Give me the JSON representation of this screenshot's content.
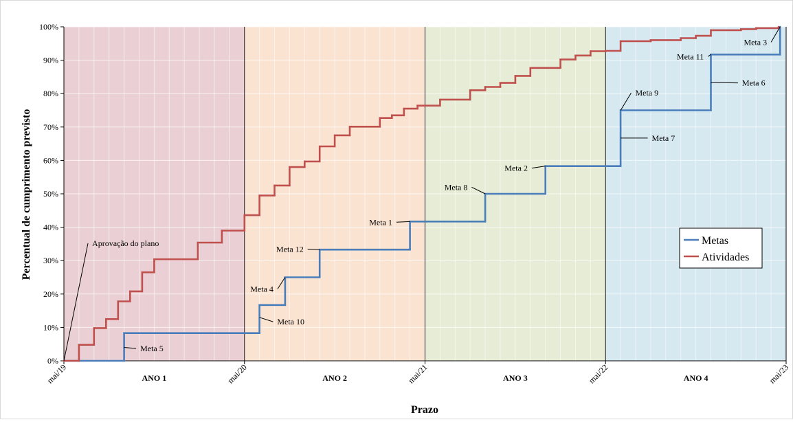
{
  "chart_data": {
    "type": "line",
    "xlabel": "Prazo",
    "ylabel": "Percentual de cumprimento previsto",
    "x_unit": "months since mai/19",
    "xlim": [
      0,
      48
    ],
    "ylim": [
      0,
      100
    ],
    "y_ticks": [
      "0%",
      "10%",
      "20%",
      "30%",
      "40%",
      "50%",
      "60%",
      "70%",
      "80%",
      "90%",
      "100%"
    ],
    "x_ticks": [
      {
        "month": 0,
        "label": "mai/19"
      },
      {
        "month": 12,
        "label": "mai/20"
      },
      {
        "month": 24,
        "label": "mai/21"
      },
      {
        "month": 36,
        "label": "mai/22"
      },
      {
        "month": 48,
        "label": "mai/23"
      }
    ],
    "periods": [
      {
        "label": "ANO 1",
        "start": 0,
        "end": 12,
        "color": "#ead0d4"
      },
      {
        "label": "ANO 2",
        "start": 12,
        "end": 24,
        "color": "#fbe3d2"
      },
      {
        "label": "ANO 3",
        "start": 24,
        "end": 36,
        "color": "#e6ecd5"
      },
      {
        "label": "ANO 4",
        "start": 36,
        "end": 48,
        "color": "#d6e8f0"
      }
    ],
    "grid": true,
    "legend_position": "right",
    "series": [
      {
        "name": "Metas",
        "color": "#4a7ebb",
        "step": true,
        "points": [
          [
            0,
            0
          ],
          [
            4,
            0
          ],
          [
            4,
            8.3
          ],
          [
            13,
            8.3
          ],
          [
            13,
            16.7
          ],
          [
            14.7,
            16.7
          ],
          [
            14.7,
            25
          ],
          [
            17,
            25
          ],
          [
            17,
            33.3
          ],
          [
            23,
            33.3
          ],
          [
            23,
            41.7
          ],
          [
            28,
            41.7
          ],
          [
            28,
            50
          ],
          [
            32,
            50
          ],
          [
            32,
            58.3
          ],
          [
            37,
            58.3
          ],
          [
            37,
            75
          ],
          [
            43,
            75
          ],
          [
            43,
            91.7
          ],
          [
            47.6,
            91.7
          ],
          [
            47.6,
            100
          ]
        ]
      },
      {
        "name": "Atividades",
        "color": "#c0504d",
        "step": true,
        "points": [
          [
            0,
            0
          ],
          [
            1,
            0
          ],
          [
            1,
            4.8
          ],
          [
            2,
            4.8
          ],
          [
            2,
            9.8
          ],
          [
            2.8,
            9.8
          ],
          [
            2.8,
            12.5
          ],
          [
            3.6,
            12.5
          ],
          [
            3.6,
            17.8
          ],
          [
            4.4,
            17.8
          ],
          [
            4.4,
            20.8
          ],
          [
            5.2,
            20.8
          ],
          [
            5.2,
            26.5
          ],
          [
            6,
            26.5
          ],
          [
            6,
            30.4
          ],
          [
            8.9,
            30.4
          ],
          [
            8.9,
            35.4
          ],
          [
            10.5,
            35.4
          ],
          [
            10.5,
            39
          ],
          [
            12,
            39
          ],
          [
            12,
            43.6
          ],
          [
            13,
            43.6
          ],
          [
            13,
            49.5
          ],
          [
            14,
            49.5
          ],
          [
            14,
            52.5
          ],
          [
            15,
            52.5
          ],
          [
            15,
            58
          ],
          [
            16,
            58
          ],
          [
            16,
            59.7
          ],
          [
            17,
            59.7
          ],
          [
            17,
            64.2
          ],
          [
            18,
            64.2
          ],
          [
            18,
            67.5
          ],
          [
            19,
            67.5
          ],
          [
            19,
            70.1
          ],
          [
            21,
            70.1
          ],
          [
            21,
            72.7
          ],
          [
            21.8,
            72.7
          ],
          [
            21.8,
            73.5
          ],
          [
            22.6,
            73.5
          ],
          [
            22.6,
            75.5
          ],
          [
            23.5,
            75.5
          ],
          [
            23.5,
            76.4
          ],
          [
            25,
            76.4
          ],
          [
            25,
            78.2
          ],
          [
            27,
            78.2
          ],
          [
            27,
            81
          ],
          [
            28,
            81
          ],
          [
            28,
            82
          ],
          [
            29,
            82
          ],
          [
            29,
            83.2
          ],
          [
            30,
            83.2
          ],
          [
            30,
            85.3
          ],
          [
            31,
            85.3
          ],
          [
            31,
            87.7
          ],
          [
            33,
            87.7
          ],
          [
            33,
            90.2
          ],
          [
            34,
            90.2
          ],
          [
            34,
            91.4
          ],
          [
            35,
            91.4
          ],
          [
            35,
            92.7
          ],
          [
            36,
            92.7
          ],
          [
            36,
            92.8
          ],
          [
            37,
            92.8
          ],
          [
            37,
            95.7
          ],
          [
            39,
            95.7
          ],
          [
            39,
            96
          ],
          [
            41,
            96
          ],
          [
            41,
            96.6
          ],
          [
            42,
            96.6
          ],
          [
            42,
            97.3
          ],
          [
            43,
            97.3
          ],
          [
            43,
            99
          ],
          [
            45,
            99
          ],
          [
            45,
            99.3
          ],
          [
            46,
            99.3
          ],
          [
            46,
            99.6
          ],
          [
            47.5,
            99.6
          ],
          [
            47.5,
            100
          ]
        ]
      }
    ],
    "annotations": [
      {
        "text": "Aprovação do plano",
        "point": [
          0,
          0
        ],
        "label_at": [
          1.6,
          35.2
        ]
      },
      {
        "text": "Meta 5",
        "point": [
          4,
          4
        ],
        "label_at": [
          4.8,
          3.7
        ]
      },
      {
        "text": "Meta 10",
        "point": [
          13,
          13
        ],
        "label_at": [
          13.9,
          11.7
        ]
      },
      {
        "text": "Meta 4",
        "point": [
          14.7,
          25
        ],
        "label_at": [
          14.2,
          21.5
        ]
      },
      {
        "text": "Meta 12",
        "point": [
          17,
          33.3
        ],
        "label_at": [
          16.2,
          33.4
        ]
      },
      {
        "text": "Meta 1",
        "point": [
          23,
          41.7
        ],
        "label_at": [
          22.1,
          41.5
        ]
      },
      {
        "text": "Meta 8",
        "point": [
          28,
          50
        ],
        "label_at": [
          27.1,
          52
        ]
      },
      {
        "text": "Meta 2",
        "point": [
          32,
          58.3
        ],
        "label_at": [
          31.1,
          57.7
        ]
      },
      {
        "text": "Meta 7",
        "point": [
          37,
          66.7
        ],
        "label_at": [
          38.8,
          66.7
        ]
      },
      {
        "text": "Meta 9",
        "point": [
          37,
          75
        ],
        "label_at": [
          37.7,
          80.2
        ]
      },
      {
        "text": "Meta 6",
        "point": [
          43,
          83.3
        ],
        "label_at": [
          44.8,
          83.2
        ]
      },
      {
        "text": "Meta 11",
        "point": [
          43,
          91.7
        ],
        "label_at": [
          42.8,
          91.1
        ]
      },
      {
        "text": "Meta 3",
        "point": [
          47.6,
          100
        ],
        "label_at": [
          47,
          95.4
        ]
      }
    ]
  }
}
